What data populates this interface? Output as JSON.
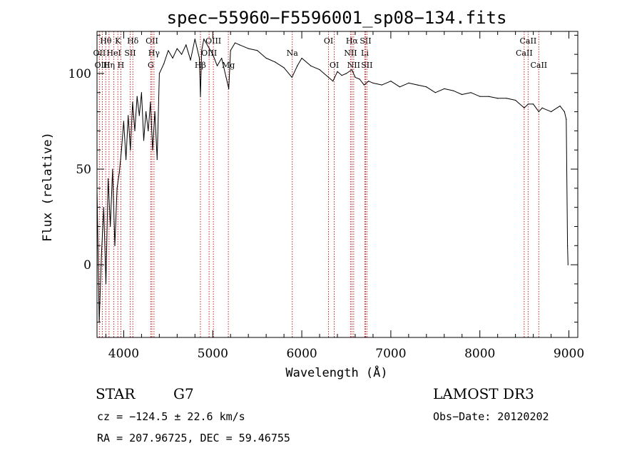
{
  "chart_data": {
    "type": "line",
    "title": "spec−55960−F5596001_sp08−134.fits",
    "xlabel": "Wavelength (Å)",
    "ylabel": "Flux (relative)",
    "xlim": [
      3700,
      9100
    ],
    "ylim": [
      -38,
      122
    ],
    "x_ticks": [
      4000,
      5000,
      6000,
      7000,
      8000,
      9000
    ],
    "y_ticks": [
      0,
      50,
      100
    ],
    "series": [
      {
        "name": "spectrum",
        "x": [
          3700,
          3725,
          3750,
          3775,
          3800,
          3825,
          3850,
          3875,
          3900,
          3925,
          3950,
          3975,
          4000,
          4025,
          4050,
          4075,
          4100,
          4125,
          4150,
          4175,
          4200,
          4225,
          4250,
          4275,
          4300,
          4325,
          4350,
          4375,
          4400,
          4450,
          4500,
          4550,
          4600,
          4650,
          4700,
          4750,
          4800,
          4850,
          4862,
          4875,
          4900,
          4950,
          5000,
          5050,
          5100,
          5150,
          5180,
          5200,
          5250,
          5300,
          5400,
          5500,
          5600,
          5700,
          5800,
          5890,
          5950,
          6000,
          6100,
          6200,
          6300,
          6350,
          6400,
          6450,
          6500,
          6563,
          6600,
          6650,
          6700,
          6750,
          6800,
          6900,
          7000,
          7100,
          7200,
          7300,
          7400,
          7500,
          7600,
          7700,
          7800,
          7900,
          8000,
          8100,
          8200,
          8300,
          8400,
          8498,
          8542,
          8600,
          8662,
          8700,
          8800,
          8900,
          8950,
          8970,
          8985,
          8990
        ],
        "values": [
          40,
          -30,
          5,
          30,
          -10,
          45,
          20,
          50,
          10,
          40,
          48,
          60,
          75,
          55,
          78,
          60,
          85,
          70,
          88,
          78,
          90,
          65,
          80,
          70,
          85,
          60,
          80,
          55,
          100,
          105,
          112,
          108,
          113,
          110,
          115,
          107,
          118,
          108,
          88,
          112,
          118,
          114,
          110,
          104,
          108,
          98,
          92,
          112,
          116,
          115,
          113,
          112,
          108,
          106,
          103,
          98,
          104,
          108,
          104,
          102,
          98,
          96,
          101,
          99,
          100,
          102,
          98,
          97,
          94,
          96,
          95,
          94,
          96,
          93,
          95,
          94,
          93,
          90,
          92,
          91,
          89,
          90,
          88,
          88,
          87,
          87,
          86,
          82,
          84,
          84,
          80,
          82,
          80,
          83,
          80,
          76,
          10,
          0
        ]
      }
    ],
    "line_markers": [
      {
        "label": "Hθ",
        "wavelength": 3798,
        "row": 1
      },
      {
        "label": "OII",
        "wavelength": 3727,
        "row": 2
      },
      {
        "label": "OIII",
        "wavelength": 3760,
        "row": 3
      },
      {
        "label": "K",
        "wavelength": 3934,
        "row": 1
      },
      {
        "label": "HeI",
        "wavelength": 3889,
        "row": 2
      },
      {
        "label": "Hη",
        "wavelength": 3835,
        "row": 3
      },
      {
        "label": "Hδ",
        "wavelength": 4102,
        "row": 1
      },
      {
        "label": "SII",
        "wavelength": 4072,
        "row": 2
      },
      {
        "label": "H",
        "wavelength": 3968,
        "row": 3
      },
      {
        "label": "OII",
        "wavelength": 4317,
        "row": 1
      },
      {
        "label": "Hγ",
        "wavelength": 4340,
        "row": 2
      },
      {
        "label": "G",
        "wavelength": 4304,
        "row": 3
      },
      {
        "label": "OIII",
        "wavelength": 5007,
        "row": 1
      },
      {
        "label": "OIII",
        "wavelength": 4959,
        "row": 2
      },
      {
        "label": "Hβ",
        "wavelength": 4861,
        "row": 3
      },
      {
        "label": "Mg",
        "wavelength": 5175,
        "row": 3
      },
      {
        "label": "Na",
        "wavelength": 5893,
        "row": 2
      },
      {
        "label": "OI",
        "wavelength": 6300,
        "row": 1
      },
      {
        "label": "OI",
        "wavelength": 6364,
        "row": 3
      },
      {
        "label": "Hα",
        "wavelength": 6563,
        "row": 1
      },
      {
        "label": "NII",
        "wavelength": 6548,
        "row": 2
      },
      {
        "label": "NII",
        "wavelength": 6583,
        "row": 3
      },
      {
        "label": "SII",
        "wavelength": 6716,
        "row": 1
      },
      {
        "label": "Li",
        "wavelength": 6708,
        "row": 2
      },
      {
        "label": "SII",
        "wavelength": 6731,
        "row": 3
      },
      {
        "label": "CaII",
        "wavelength": 8542,
        "row": 1
      },
      {
        "label": "CaII",
        "wavelength": 8498,
        "row": 2
      },
      {
        "label": "CaII",
        "wavelength": 8662,
        "row": 3
      }
    ]
  },
  "info": {
    "class": "STAR",
    "subclass": "G7",
    "survey": "LAMOST DR3",
    "cz": "cz = −124.5 ± 22.6 km/s",
    "obs_date": "Obs−Date: 20120202",
    "coords": "RA = 207.96725, DEC =  59.46755"
  },
  "colors": {
    "marker_line": "#cc2222",
    "spectrum": "#000000",
    "axes": "#000000"
  }
}
